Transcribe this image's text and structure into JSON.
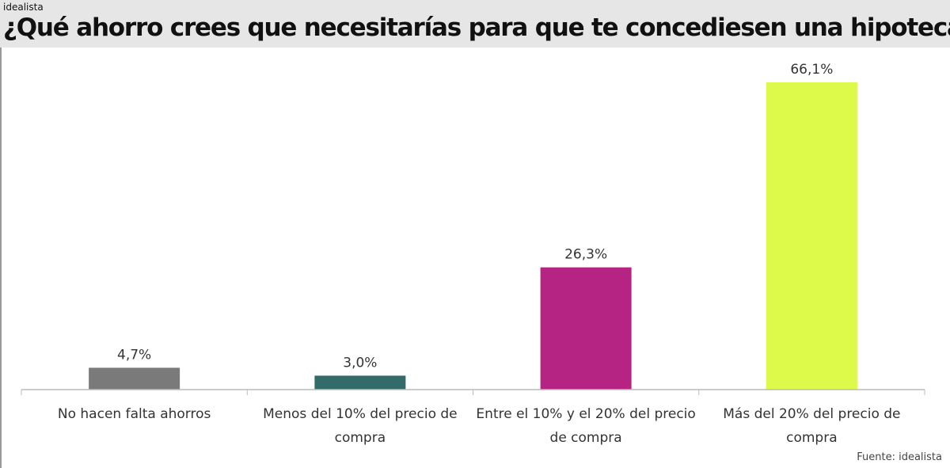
{
  "brand": "idealista",
  "source": "Fuente: idealista",
  "chart_data": {
    "type": "bar",
    "title": "¿Qué ahorro crees que necesitarías para que te concediesen una hipoteca?",
    "categories": [
      [
        "No hacen falta ahorros"
      ],
      [
        "Menos del 10% del precio de",
        "compra"
      ],
      [
        "Entre el 10% y el 20% del precio",
        "de compra"
      ],
      [
        "Más del 20% del precio de",
        "compra"
      ]
    ],
    "values": [
      4.7,
      3.0,
      26.3,
      66.1
    ],
    "data_labels": [
      "4,7%",
      "3,0%",
      "26,3%",
      "66,1%"
    ],
    "colors": [
      "#7a7a7a",
      "#336a6a",
      "#b52483",
      "#ddf94a"
    ],
    "ylim": [
      0,
      70
    ],
    "grid": false,
    "legend": "none"
  }
}
